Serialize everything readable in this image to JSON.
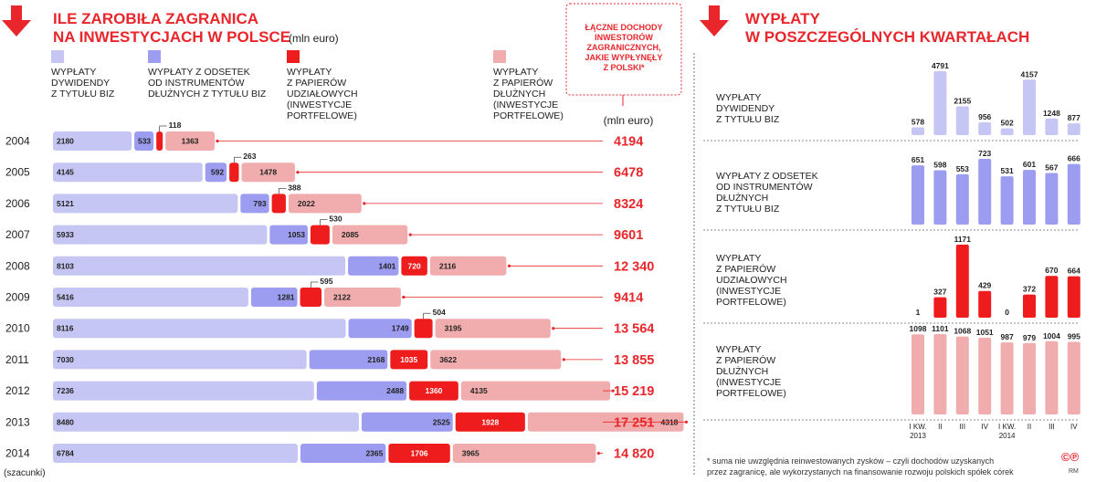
{
  "left": {
    "title_line1": "ILE ZAROBIŁA ZAGRANICA",
    "title_line2": "NA INWESTYCJACH W POLSCE",
    "unit": "(mln euro)",
    "totals_unit": "(mln euro)",
    "callout": [
      "ŁĄCZNE DOCHODY",
      "INWESTORÓW",
      "ZAGRANICZNYCH,",
      "JAKIE WYPŁYNĘŁY",
      "Z POLSKI*"
    ],
    "legend": [
      {
        "lines": [
          "WYPŁATY",
          "DYWIDENDY",
          "Z TYTUŁU BIZ"
        ],
        "color": "#c6c6f4"
      },
      {
        "lines": [
          "WYPŁATY Z ODSETEK",
          "OD INSTRUMENTÓW",
          "DŁUŻNYCH Z TYTUŁU BIZ"
        ],
        "color": "#9c9cf0"
      },
      {
        "lines": [
          "WYPŁATY",
          "Z PAPIERÓW",
          "UDZIAŁOWYCH",
          "(INWESTYCJE",
          "PORTFELOWE)"
        ],
        "color": "#ee1c1c"
      },
      {
        "lines": [
          "WYPŁATY",
          "Z PAPIERÓW",
          "DŁUŻNYCH",
          "(INWESTYCJE",
          "PORTFELOWE)"
        ],
        "color": "#f1adad"
      }
    ],
    "estimate_note": "(szacunki)"
  },
  "right": {
    "title_line1": "WYPŁATY",
    "title_line2": "W POSZCZEGÓLNYCH KWARTAŁACH",
    "footnote_line1": "* suma nie uwzględnia reinwestowanych zysków – czyli dochodów uzyskanych",
    "footnote_line2": "przez zagranicę, ale wykorzystanych na finansowanie rozwoju polskich spółek córek",
    "credit_logo": "©℗",
    "credit_initials": "RM"
  },
  "chart_data": [
    {
      "type": "bar",
      "stacked": true,
      "orientation": "horizontal",
      "categories": [
        "2004",
        "2005",
        "2006",
        "2007",
        "2008",
        "2009",
        "2010",
        "2011",
        "2012",
        "2013",
        "2014"
      ],
      "series": [
        {
          "name": "WYPŁATY DYWIDENDY Z TYTUŁU BIZ",
          "color": "#c6c6f4",
          "values": [
            2180,
            4145,
            5121,
            5933,
            8103,
            5416,
            8116,
            7030,
            7236,
            8480,
            6784
          ]
        },
        {
          "name": "WYPŁATY Z ODSETEK OD INSTRUMENTÓW DŁUŻNYCH Z TYTUŁU BIZ",
          "color": "#9c9cf0",
          "values": [
            533,
            592,
            793,
            1053,
            1401,
            1281,
            1749,
            2168,
            2488,
            2525,
            2365
          ]
        },
        {
          "name": "WYPŁATY Z PAPIERÓW UDZIAŁOWYCH (INWESTYCJE PORTFELOWE)",
          "color": "#ee1c1c",
          "values": [
            118,
            263,
            388,
            530,
            720,
            595,
            504,
            1035,
            1360,
            1928,
            1706
          ]
        },
        {
          "name": "WYPŁATY Z PAPIERÓW DŁUŻNYCH (INWESTYCJE PORTFELOWE)",
          "color": "#f1adad",
          "values": [
            1363,
            1478,
            2022,
            2085,
            2116,
            2122,
            3195,
            3622,
            4135,
            4318,
            3965
          ]
        }
      ],
      "totals": [
        "4194",
        "6478",
        "8324",
        "9601",
        "12 340",
        "9414",
        "13 564",
        "13 855",
        "15 219",
        "17 251",
        "14 820"
      ]
    },
    {
      "type": "bar",
      "orientation": "vertical",
      "categories": [
        "I KW. 2013",
        "II",
        "III",
        "IV",
        "I KW. 2014",
        "II",
        "III",
        "IV"
      ],
      "category_labels": [
        [
          "I KW.",
          "2013"
        ],
        [
          "II"
        ],
        [
          "III"
        ],
        [
          "IV"
        ],
        [
          "I KW.",
          "2014"
        ],
        [
          "II"
        ],
        [
          "III"
        ],
        [
          "IV"
        ]
      ],
      "panels": [
        {
          "name": "WYPŁATY DYWIDENDY Z TYTUŁU BIZ",
          "lines": [
            "WYPŁATY",
            "DYWIDENDY",
            "Z TYTUŁU BIZ"
          ],
          "color": "#c6c6f4",
          "values": [
            578,
            4791,
            2155,
            956,
            502,
            4157,
            1248,
            877
          ],
          "max": 4791
        },
        {
          "name": "WYPŁATY Z ODSETEK OD INSTRUMENTÓW DŁUŻNYCH Z TYTUŁU BIZ",
          "lines": [
            "WYPŁATY Z ODSETEK",
            "OD INSTRUMENTÓW",
            "DŁUŻNYCH",
            "Z TYTUŁU BIZ"
          ],
          "color": "#9c9cf0",
          "values": [
            651,
            598,
            553,
            723,
            531,
            601,
            567,
            666
          ],
          "max": 723
        },
        {
          "name": "WYPŁATY Z PAPIERÓW UDZIAŁOWYCH (INWESTYCJE PORTFELOWE)",
          "lines": [
            "WYPŁATY",
            "Z PAPIERÓW",
            "UDZIAŁOWYCH",
            "(INWESTYCJE",
            "PORTFELOWE)"
          ],
          "color": "#ee1c1c",
          "values": [
            1,
            327,
            1171,
            429,
            0,
            372,
            670,
            664
          ],
          "max": 1171
        },
        {
          "name": "WYPŁATY Z PAPIERÓW DŁUŻNYCH (INWESTYCJE PORTFELOWE)",
          "lines": [
            "WYPŁATY",
            "Z PAPIERÓW",
            "DŁUŻNYCH",
            "(INWESTYCJE",
            "PORTFELOWE)"
          ],
          "color": "#f1adad",
          "values": [
            1098,
            1101,
            1068,
            1051,
            987,
            979,
            1004,
            995
          ],
          "max": 1101
        }
      ]
    }
  ]
}
